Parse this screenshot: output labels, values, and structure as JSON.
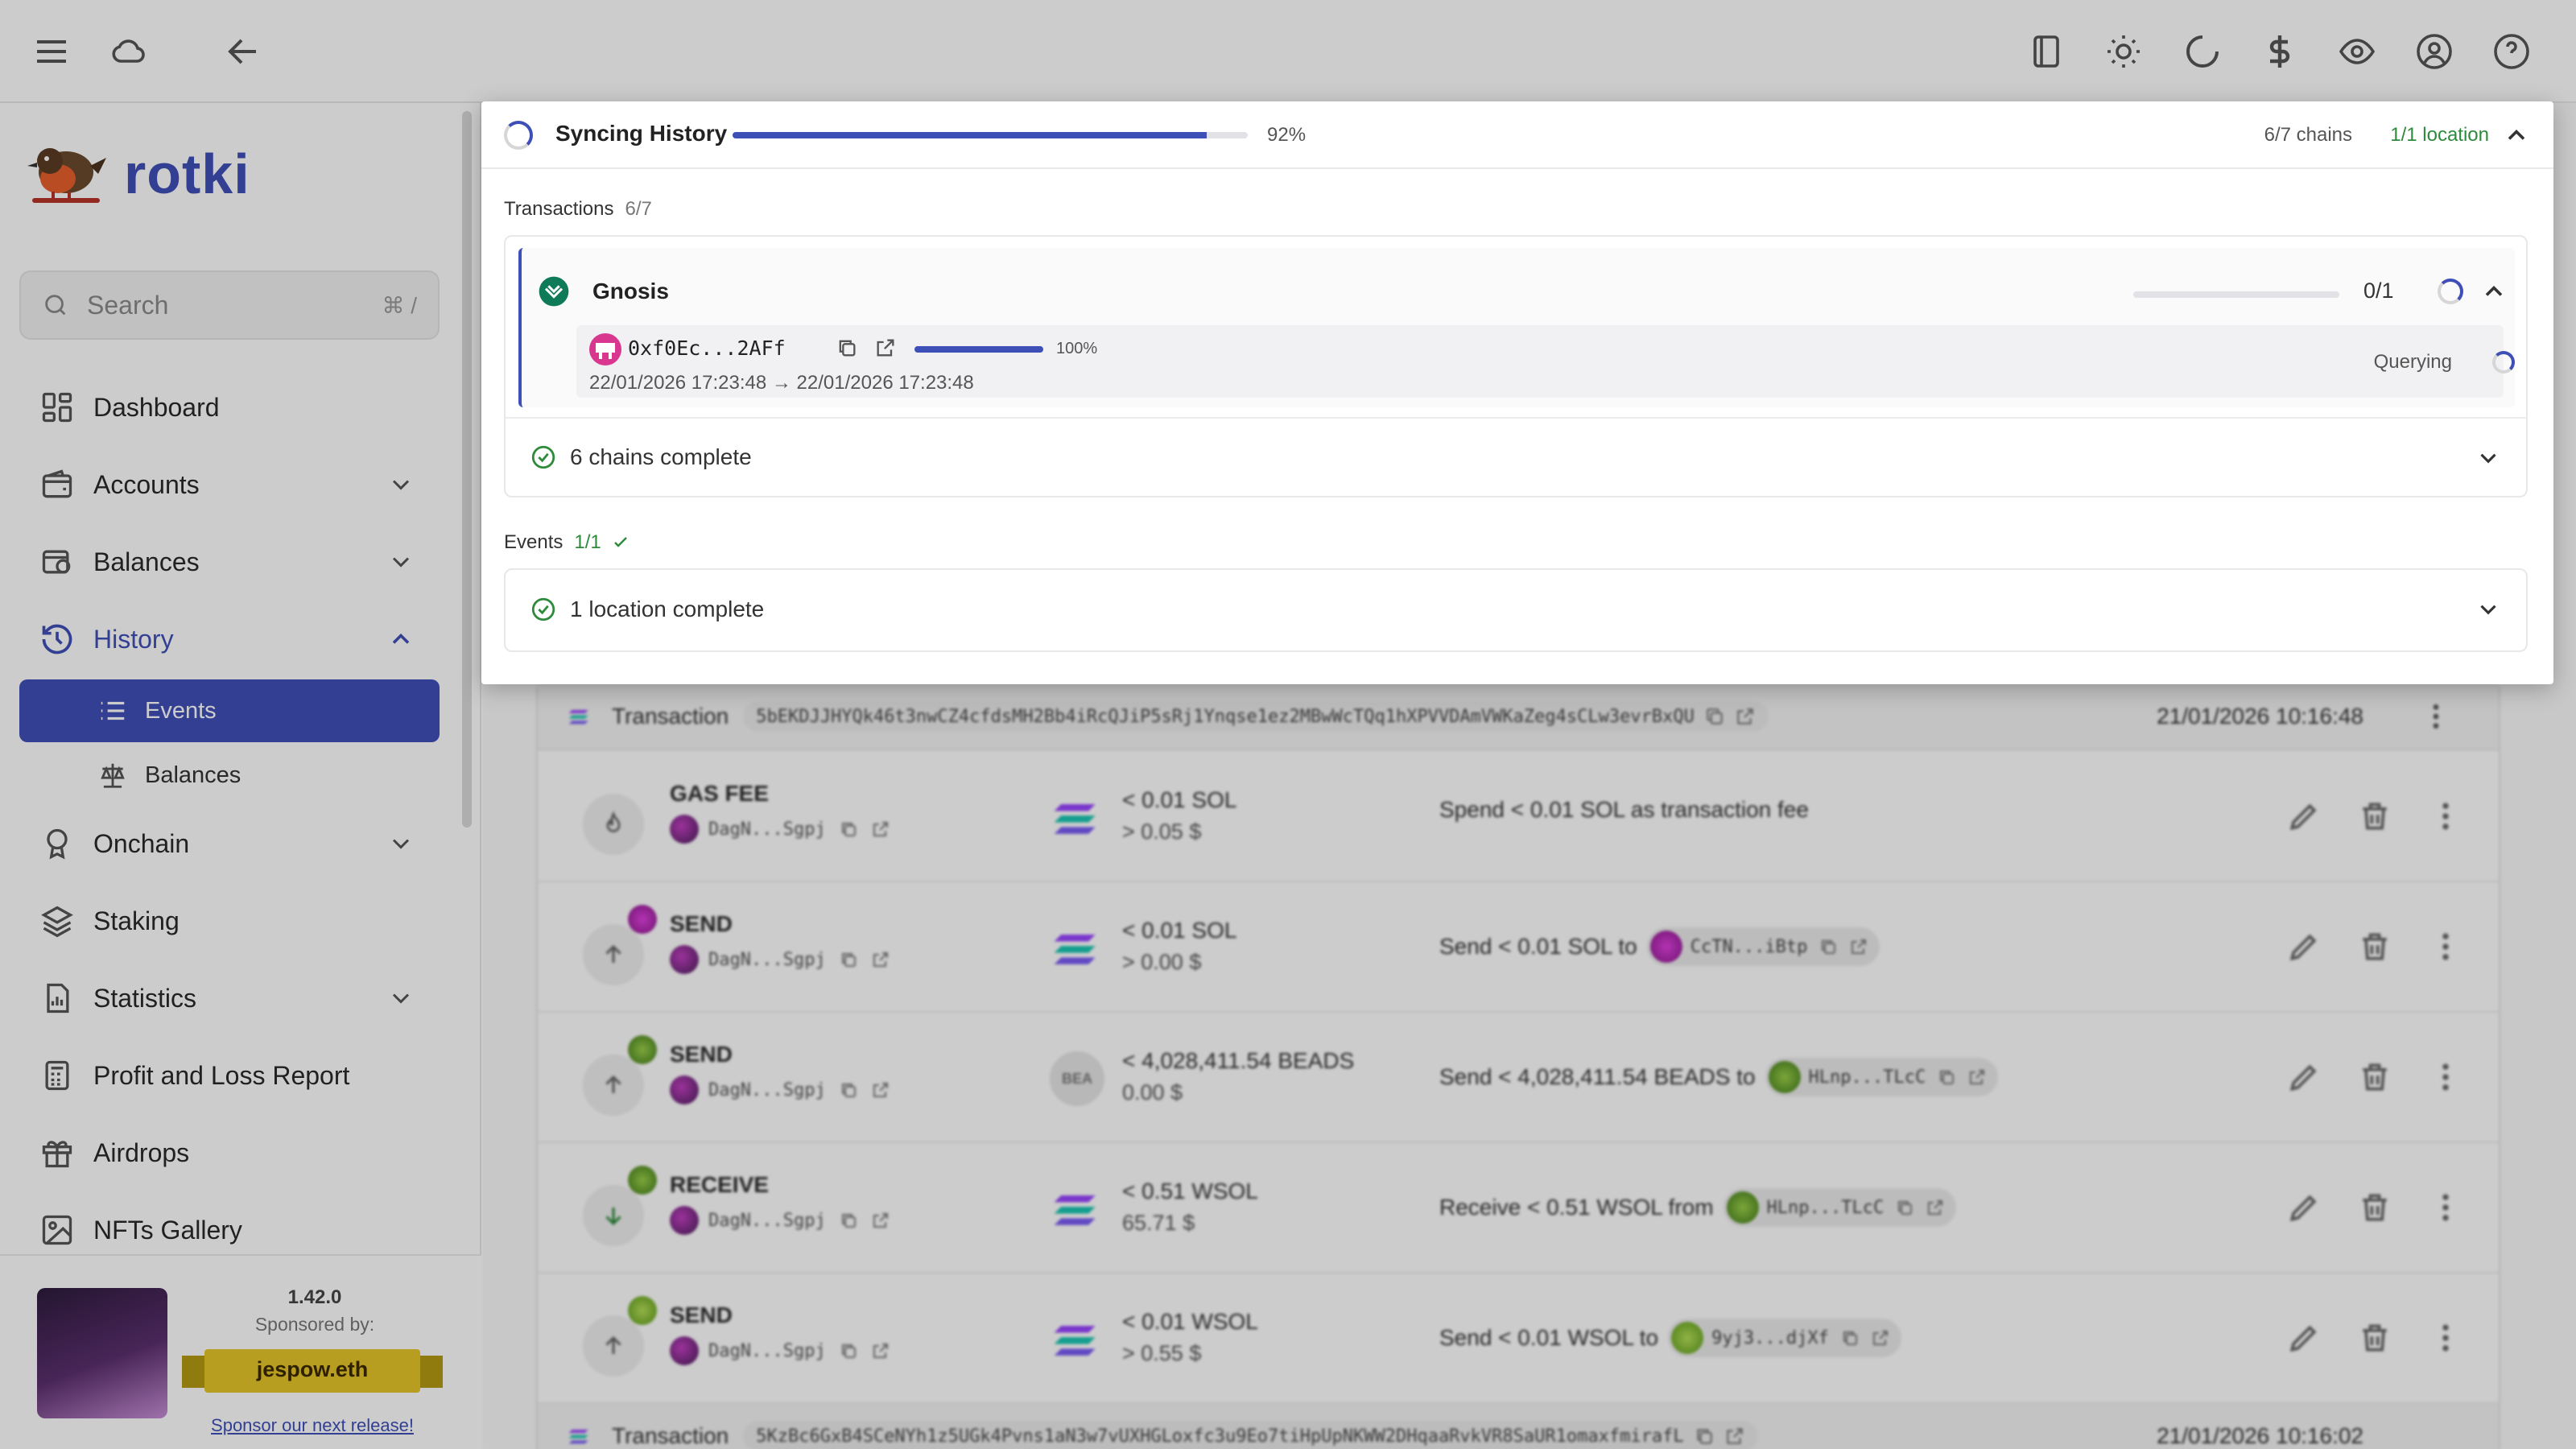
{
  "sidebar": {
    "brand": "rotki",
    "search": {
      "placeholder": "Search",
      "shortcut": "⌘ /"
    },
    "items": [
      {
        "label": "Dashboard"
      },
      {
        "label": "Accounts"
      },
      {
        "label": "Balances"
      },
      {
        "label": "History"
      },
      {
        "label": "Onchain"
      },
      {
        "label": "Staking"
      },
      {
        "label": "Statistics"
      },
      {
        "label": "Profit and Loss Report"
      },
      {
        "label": "Airdrops"
      },
      {
        "label": "NFTs Gallery"
      }
    ],
    "history_sub": [
      {
        "label": "Events"
      },
      {
        "label": "Balances"
      }
    ],
    "sponsor": {
      "version": "1.42.0",
      "sponsored_by": "Sponsored by:",
      "sponsor_name": "jespow.eth",
      "link": "Sponsor our next release!"
    }
  },
  "sync": {
    "title": "Syncing History",
    "progress_pct": 92,
    "progress_label": "92%",
    "chains_label": "6/7 chains",
    "location_label": "1/1 location",
    "transactions_label": "Transactions",
    "transactions_count": "6/7",
    "chain": {
      "name": "Gnosis",
      "count": "0/1",
      "progress_pct": 0,
      "address": "0xf0Ec...2AFf",
      "address_pct": 100,
      "address_pct_label": "100%",
      "range": "22/01/2026 17:23:48 → 22/01/2026 17:23:48",
      "status": "Querying"
    },
    "chains_complete": "6 chains complete",
    "events_label": "Events",
    "events_count": "1/1",
    "location_complete": "1 location complete"
  },
  "table": {
    "tx1": {
      "label": "Transaction",
      "hash": "5bEKDJJHYQk46t3nwCZ4cfdsMH2Bb4iRcQJiP5sRj1Ynqse1ez2MBwWcTQq1hXPVVDAmVWKaZeg4sCLw3evrBxQU",
      "timestamp": "21/01/2026 10:16:48"
    },
    "tx2": {
      "label": "Transaction",
      "hash": "5KzBc6GxB4SCeNYh1z5UGk4Pvns1aN3w7vUXHGLoxfc3u9Eo7tiHpUpNKWW2DHqaaRvkVR8SaUR1omaxfmirafL",
      "timestamp": "21/01/2026 10:16:02"
    },
    "rows": [
      {
        "type": "GAS FEE",
        "account": "DagN...Sgpj",
        "amount": "< 0.01 SOL",
        "usd": "> 0.05 $",
        "desc": "Spend < 0.01 SOL as transaction fee",
        "counterparty": ""
      },
      {
        "type": "SEND",
        "account": "DagN...Sgpj",
        "amount": "< 0.01 SOL",
        "usd": "> 0.00 $",
        "desc": "Send < 0.01 SOL to",
        "counterparty": "CcTN...iBtp"
      },
      {
        "type": "SEND",
        "account": "DagN...Sgpj",
        "amount": "< 4,028,411.54 BEADS",
        "usd": "0.00 $",
        "desc": "Send < 4,028,411.54 BEADS to",
        "counterparty": "HLnp...TLcC",
        "asset_tag": "BEA"
      },
      {
        "type": "RECEIVE",
        "account": "DagN...Sgpj",
        "amount": "< 0.51 WSOL",
        "usd": "65.71 $",
        "desc": "Receive < 0.51 WSOL from",
        "counterparty": "HLnp...TLcC"
      },
      {
        "type": "SEND",
        "account": "DagN...Sgpj",
        "amount": "< 0.01 WSOL",
        "usd": "> 0.55 $",
        "desc": "Send < 0.01 WSOL to",
        "counterparty": "9yj3...djXf"
      }
    ]
  },
  "colors": {
    "accent": "#3f4fb8",
    "success": "#2e8b3c"
  }
}
